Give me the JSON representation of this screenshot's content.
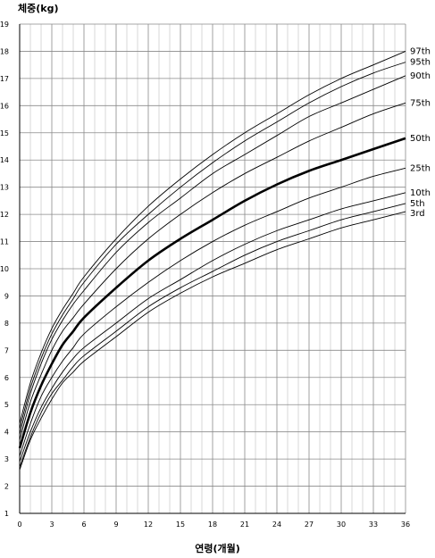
{
  "chart_data": {
    "type": "line",
    "ylabel": "체중(kg)",
    "xlabel": "연령(개월)",
    "xlim": [
      0,
      36
    ],
    "ylim": [
      1,
      19
    ],
    "x_ticks": [
      0,
      3,
      6,
      9,
      12,
      15,
      18,
      21,
      24,
      27,
      30,
      33,
      36
    ],
    "y_ticks": [
      1,
      2,
      3,
      4,
      5,
      6,
      7,
      8,
      9,
      10,
      11,
      12,
      13,
      14,
      15,
      16,
      17,
      18,
      19
    ],
    "grid": true,
    "x": [
      0,
      1,
      2,
      3,
      4,
      5,
      6,
      9,
      12,
      15,
      18,
      21,
      24,
      27,
      30,
      33,
      36
    ],
    "series": [
      {
        "name": "97th",
        "emphasis": false,
        "values": [
          4.3,
          5.8,
          6.9,
          7.8,
          8.5,
          9.1,
          9.7,
          11.1,
          12.3,
          13.3,
          14.2,
          15.0,
          15.7,
          16.4,
          17.0,
          17.5,
          18.0
        ]
      },
      {
        "name": "95th",
        "emphasis": false,
        "values": [
          4.1,
          5.6,
          6.7,
          7.6,
          8.3,
          8.9,
          9.5,
          10.9,
          12.0,
          13.0,
          13.9,
          14.7,
          15.4,
          16.1,
          16.7,
          17.2,
          17.6
        ]
      },
      {
        "name": "90th",
        "emphasis": false,
        "values": [
          3.9,
          5.4,
          6.5,
          7.4,
          8.1,
          8.7,
          9.2,
          10.6,
          11.7,
          12.6,
          13.5,
          14.2,
          14.9,
          15.6,
          16.1,
          16.6,
          17.1
        ]
      },
      {
        "name": "75th",
        "emphasis": false,
        "values": [
          3.7,
          5.1,
          6.1,
          7.0,
          7.7,
          8.2,
          8.7,
          10.0,
          11.1,
          12.0,
          12.8,
          13.5,
          14.1,
          14.7,
          15.2,
          15.7,
          16.1
        ]
      },
      {
        "name": "50th",
        "emphasis": true,
        "values": [
          3.4,
          4.7,
          5.7,
          6.5,
          7.2,
          7.7,
          8.2,
          9.3,
          10.3,
          11.1,
          11.8,
          12.5,
          13.1,
          13.6,
          14.0,
          14.4,
          14.8
        ]
      },
      {
        "name": "25th",
        "emphasis": false,
        "values": [
          3.1,
          4.3,
          5.3,
          6.0,
          6.6,
          7.1,
          7.6,
          8.6,
          9.5,
          10.3,
          11.0,
          11.6,
          12.1,
          12.6,
          13.0,
          13.4,
          13.7
        ]
      },
      {
        "name": "10th",
        "emphasis": false,
        "values": [
          2.9,
          4.0,
          4.9,
          5.6,
          6.2,
          6.7,
          7.1,
          8.0,
          8.9,
          9.6,
          10.3,
          10.9,
          11.4,
          11.8,
          12.2,
          12.5,
          12.8
        ]
      },
      {
        "name": "5th",
        "emphasis": false,
        "values": [
          2.7,
          3.8,
          4.7,
          5.4,
          5.9,
          6.4,
          6.8,
          7.7,
          8.6,
          9.3,
          9.9,
          10.5,
          11.0,
          11.4,
          11.8,
          12.1,
          12.4
        ]
      },
      {
        "name": "3rd",
        "emphasis": false,
        "values": [
          2.6,
          3.7,
          4.5,
          5.2,
          5.8,
          6.2,
          6.6,
          7.5,
          8.4,
          9.1,
          9.7,
          10.2,
          10.7,
          11.1,
          11.5,
          11.8,
          12.1
        ]
      }
    ]
  }
}
